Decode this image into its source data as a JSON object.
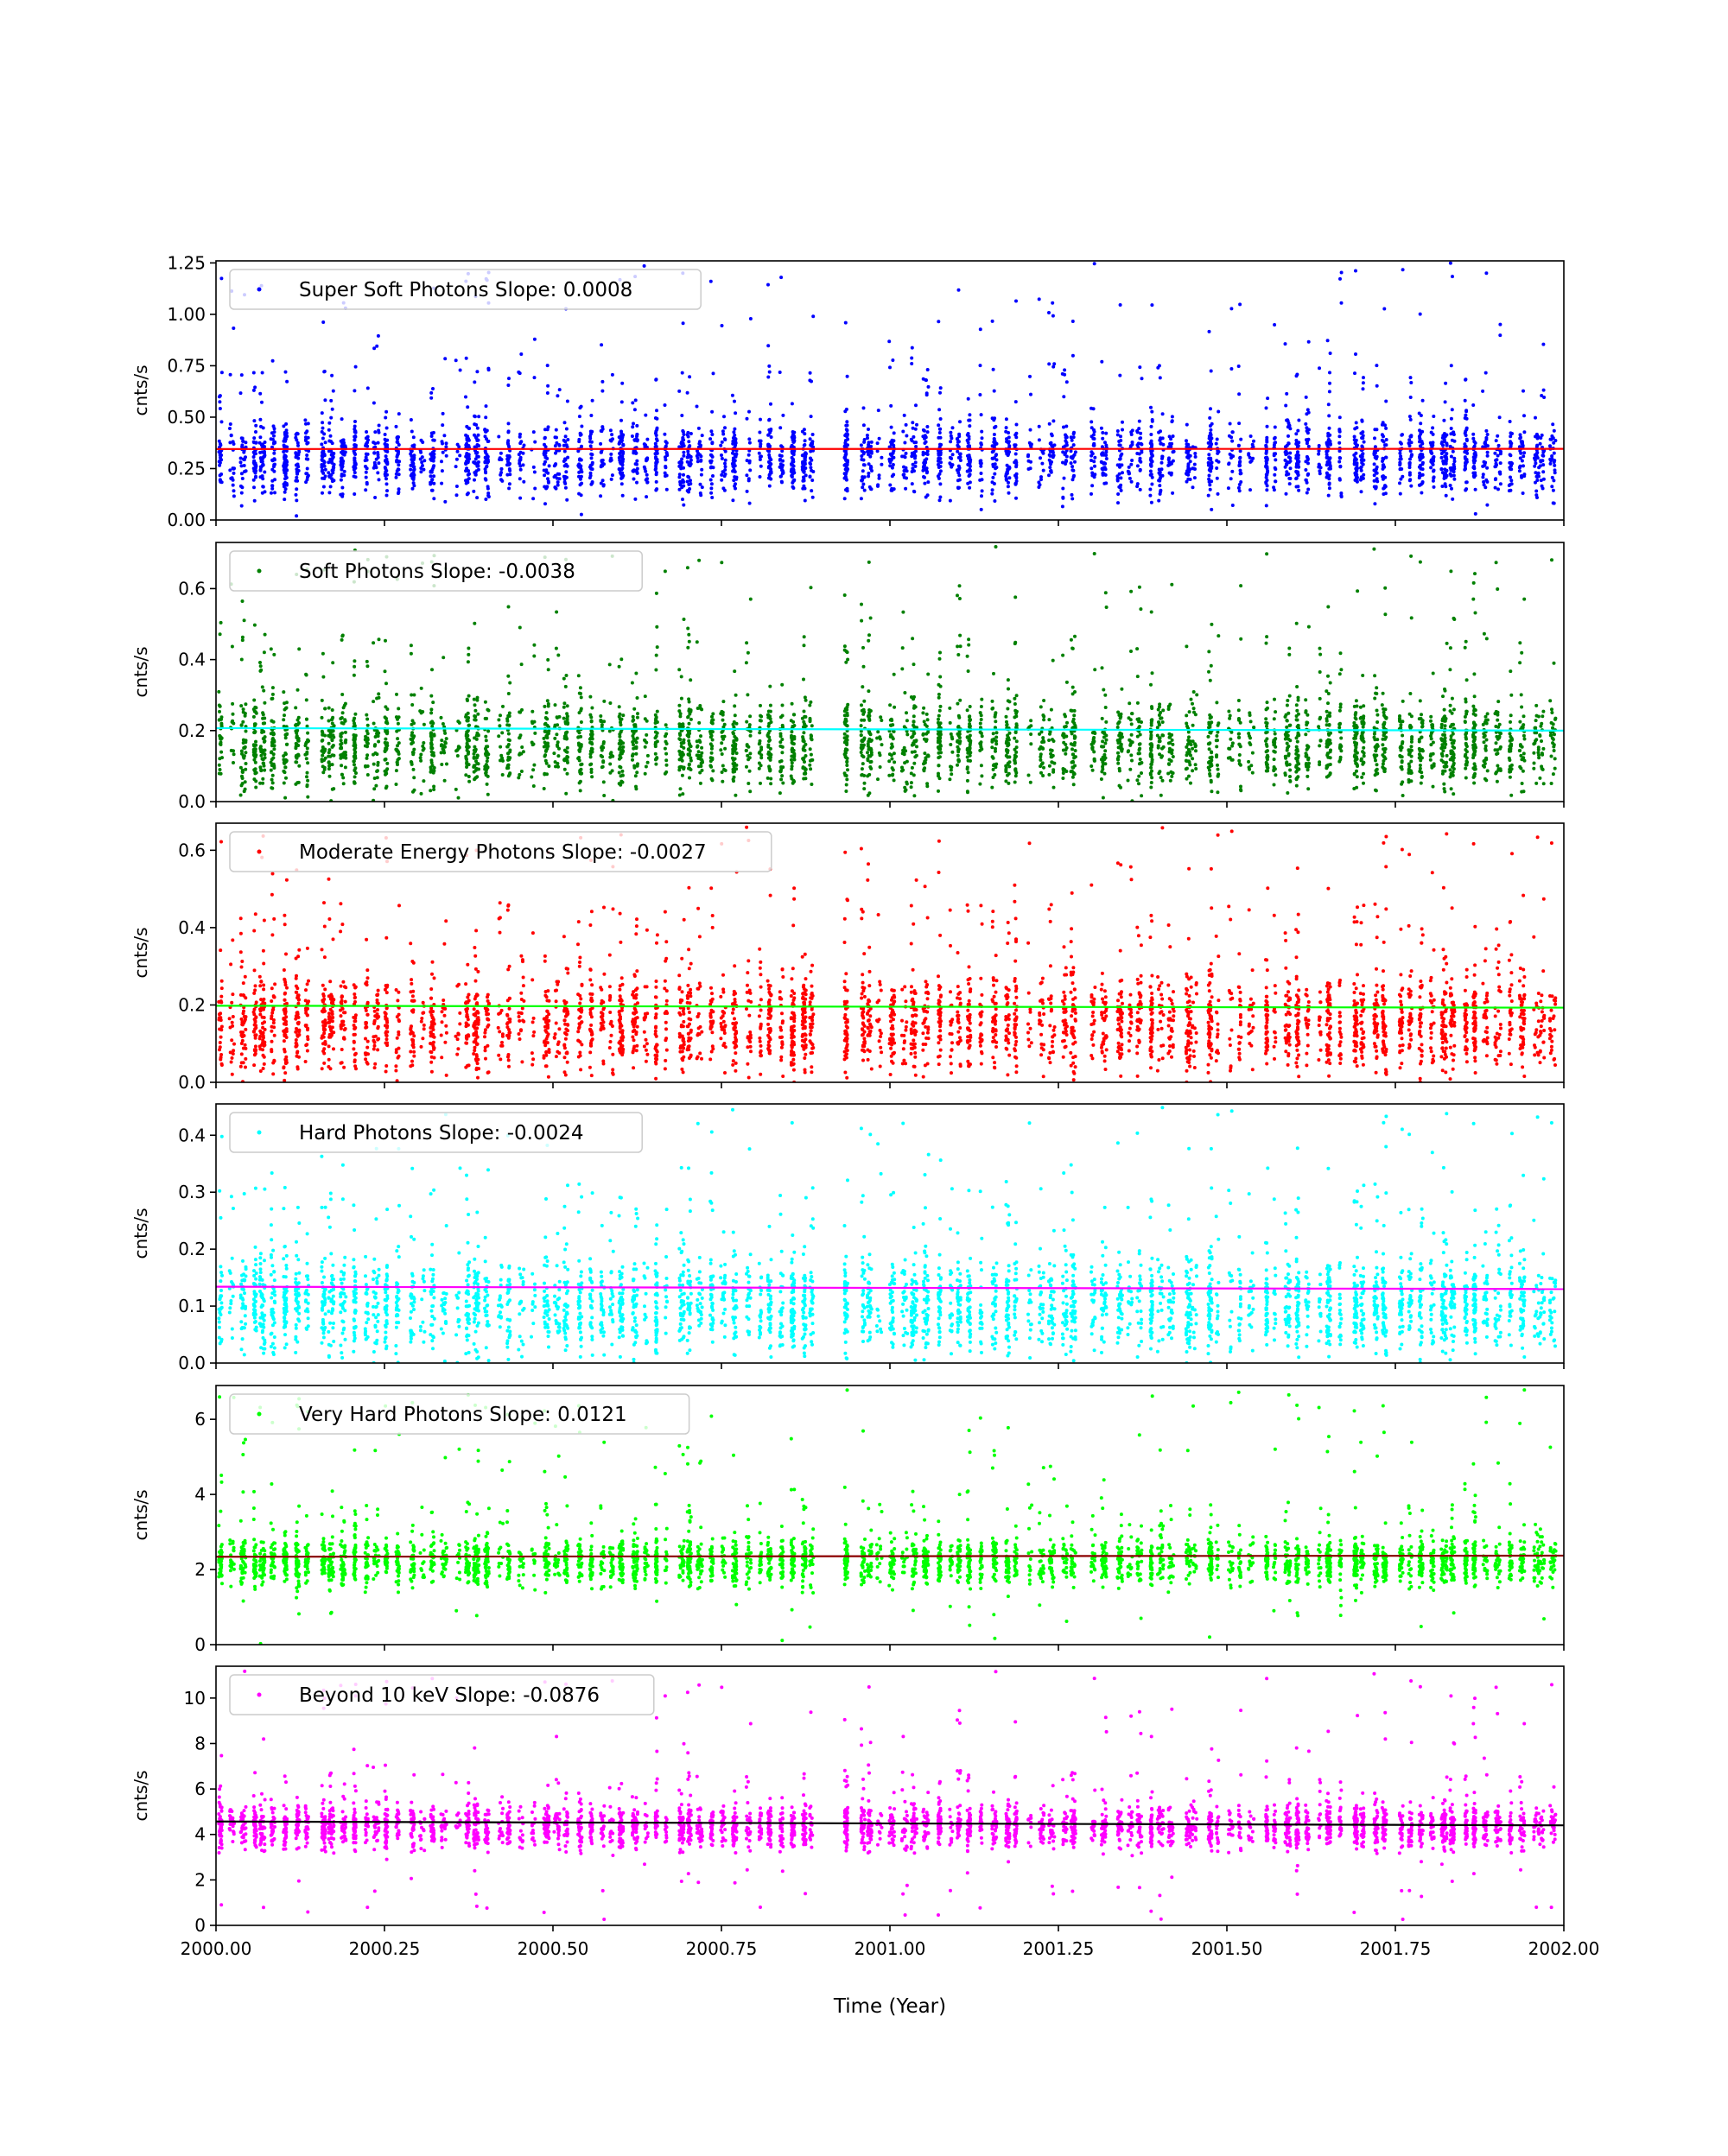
{
  "figure": {
    "xlabel": "Time (Year)",
    "x_ticks": [
      "2000.00",
      "2000.25",
      "2000.50",
      "2000.75",
      "2001.00",
      "2001.25",
      "2001.50",
      "2001.75",
      "2002.00"
    ],
    "xlim": [
      2000.0,
      2002.0
    ]
  },
  "chart_data": [
    {
      "type": "scatter",
      "legend": "Super Soft Photons Slope: 0.0008",
      "ylabel": "cnts/s",
      "ylim": [
        0,
        1.26
      ],
      "y_ticks": [
        "0.00",
        "0.25",
        "0.50",
        "0.75",
        "1.00",
        "1.25"
      ],
      "y_tick_values": [
        0,
        0.25,
        0.5,
        0.75,
        1.0,
        1.25
      ],
      "point_color": "#0000ff",
      "fit_color": "#ff0000",
      "fit": {
        "y_start": 0.345,
        "y_end": 0.346
      },
      "baseline": 0.3,
      "spread": 0.13,
      "outlier_max": 1.25,
      "legend_location": "upper left"
    },
    {
      "type": "scatter",
      "legend": "Soft Photons Slope: -0.0038",
      "ylabel": "cnts/s",
      "ylim": [
        0,
        0.73
      ],
      "y_ticks": [
        "0.0",
        "0.2",
        "0.4",
        "0.6"
      ],
      "y_tick_values": [
        0,
        0.2,
        0.4,
        0.6
      ],
      "point_color": "#008000",
      "fit_color": "#00ffff",
      "fit": {
        "y_start": 0.207,
        "y_end": 0.2
      },
      "baseline": 0.16,
      "spread": 0.09,
      "outlier_max": 0.72,
      "legend_location": "upper left"
    },
    {
      "type": "scatter",
      "legend": "Moderate Energy Photons Slope: -0.0027",
      "ylabel": "cnts/s",
      "ylim": [
        0,
        0.67
      ],
      "y_ticks": [
        "0.0",
        "0.2",
        "0.4",
        "0.6"
      ],
      "y_tick_values": [
        0,
        0.2,
        0.4,
        0.6
      ],
      "point_color": "#ff0000",
      "fit_color": "#00ff00",
      "fit": {
        "y_start": 0.198,
        "y_end": 0.193
      },
      "baseline": 0.15,
      "spread": 0.09,
      "outlier_max": 0.66,
      "legend_location": "upper left"
    },
    {
      "type": "scatter",
      "legend": "Hard Photons Slope: -0.0024",
      "ylabel": "cnts/s",
      "ylim": [
        0,
        0.455
      ],
      "y_ticks": [
        "0.0",
        "0.1",
        "0.2",
        "0.3",
        "0.4"
      ],
      "y_tick_values": [
        0,
        0.1,
        0.2,
        0.3,
        0.4
      ],
      "point_color": "#00ffff",
      "fit_color": "#ff00ff",
      "fit": {
        "y_start": 0.134,
        "y_end": 0.13
      },
      "baseline": 0.1,
      "spread": 0.06,
      "outlier_max": 0.45,
      "legend_location": "upper left"
    },
    {
      "type": "scatter",
      "legend": "Very Hard Photons Slope: 0.0121",
      "ylabel": "cnts/s",
      "ylim": [
        0,
        6.9
      ],
      "y_ticks": [
        "0",
        "2",
        "4",
        "6"
      ],
      "y_tick_values": [
        0,
        2,
        4,
        6
      ],
      "point_color": "#00ff00",
      "fit_color": "#8b0000",
      "fit": {
        "y_start": 2.34,
        "y_end": 2.37
      },
      "baseline": 2.2,
      "spread": 0.45,
      "outlier_max": 6.8,
      "legend_location": "upper left"
    },
    {
      "type": "scatter",
      "legend": "Beyond 10 keV Slope: -0.0876",
      "ylabel": "cnts/s",
      "ylim": [
        0,
        11.4
      ],
      "y_ticks": [
        "0",
        "2",
        "4",
        "6",
        "8",
        "10"
      ],
      "y_tick_values": [
        0,
        2,
        4,
        6,
        8,
        10
      ],
      "point_color": "#ff00ff",
      "fit_color": "#000000",
      "fit": {
        "y_start": 4.57,
        "y_end": 4.4
      },
      "baseline": 4.3,
      "spread": 0.7,
      "outlier_max": 11.2,
      "legend_location": "upper left"
    }
  ]
}
